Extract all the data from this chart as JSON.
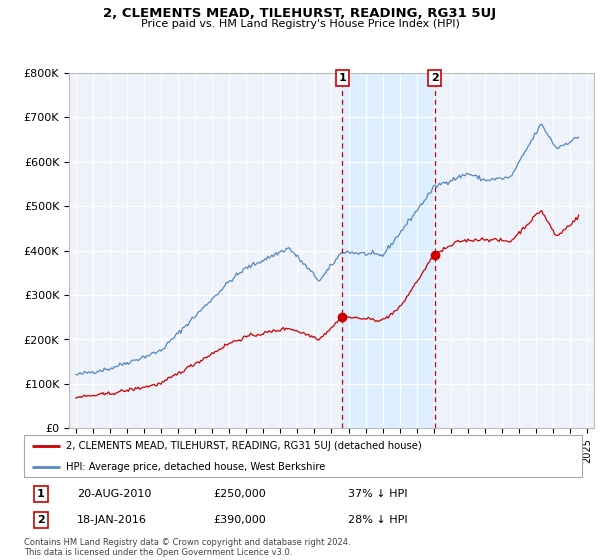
{
  "title": "2, CLEMENTS MEAD, TILEHURST, READING, RG31 5UJ",
  "subtitle": "Price paid vs. HM Land Registry's House Price Index (HPI)",
  "legend_line1": "2, CLEMENTS MEAD, TILEHURST, READING, RG31 5UJ (detached house)",
  "legend_line2": "HPI: Average price, detached house, West Berkshire",
  "transaction1_date": "20-AUG-2010",
  "transaction1_price": "£250,000",
  "transaction1_hpi": "37% ↓ HPI",
  "transaction2_date": "18-JAN-2016",
  "transaction2_price": "£390,000",
  "transaction2_hpi": "28% ↓ HPI",
  "copyright": "Contains HM Land Registry data © Crown copyright and database right 2024.\nThis data is licensed under the Open Government Licence v3.0.",
  "red_color": "#cc0000",
  "blue_color": "#5588bb",
  "shade_color": "#ddeeff",
  "background_color": "#eef2fa",
  "ylim": [
    0,
    800000
  ],
  "yticks": [
    0,
    100000,
    200000,
    300000,
    400000,
    500000,
    600000,
    700000,
    800000
  ],
  "sale1_x": 2010.64,
  "sale1_y": 250000,
  "sale2_x": 2016.05,
  "sale2_y": 390000,
  "xlim_min": 1994.6,
  "xlim_max": 2025.4
}
